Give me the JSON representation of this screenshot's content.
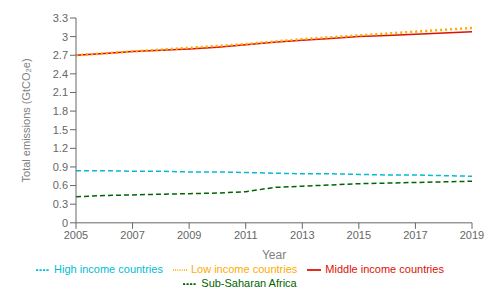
{
  "chart_data": {
    "type": "line",
    "xlabel": "Year",
    "ylabel": "Total emissions (GtCO₂e)",
    "x": [
      2005,
      2006,
      2007,
      2008,
      2009,
      2010,
      2011,
      2012,
      2013,
      2014,
      2015,
      2016,
      2017,
      2018,
      2019
    ],
    "xlim": [
      2005,
      2019
    ],
    "xticks": [
      2005,
      2007,
      2009,
      2011,
      2013,
      2015,
      2017,
      2019
    ],
    "ylim": [
      0,
      3.3
    ],
    "yticks": [
      0,
      0.3,
      0.6,
      0.9,
      1.2,
      1.5,
      1.8,
      2.1,
      2.4,
      2.7,
      3,
      3.3
    ],
    "grid": false,
    "legend": "bottom",
    "series": [
      {
        "name": "Sub-Saharan Africa",
        "color": "#006400",
        "line_style": "dashed",
        "values": [
          0.42,
          0.44,
          0.45,
          0.46,
          0.47,
          0.48,
          0.5,
          0.57,
          0.59,
          0.61,
          0.63,
          0.64,
          0.65,
          0.66,
          0.67
        ]
      },
      {
        "name": "Middle income countries",
        "color": "#dd1100",
        "line_style": "solid",
        "values": [
          2.7,
          2.73,
          2.76,
          2.78,
          2.8,
          2.83,
          2.87,
          2.91,
          2.94,
          2.97,
          3.0,
          3.02,
          3.04,
          3.06,
          3.08
        ]
      },
      {
        "name": "Low income countries",
        "color": "#ffaa00",
        "line_style": "dotted",
        "values": [
          2.7,
          2.73,
          2.76,
          2.79,
          2.82,
          2.85,
          2.88,
          2.92,
          2.96,
          2.99,
          3.02,
          3.05,
          3.08,
          3.11,
          3.14
        ]
      },
      {
        "name": "High income countries",
        "color": "#00bcd4",
        "line_style": "dashed",
        "values": [
          0.84,
          0.84,
          0.83,
          0.83,
          0.82,
          0.82,
          0.81,
          0.8,
          0.79,
          0.79,
          0.78,
          0.77,
          0.77,
          0.76,
          0.75
        ]
      }
    ]
  }
}
